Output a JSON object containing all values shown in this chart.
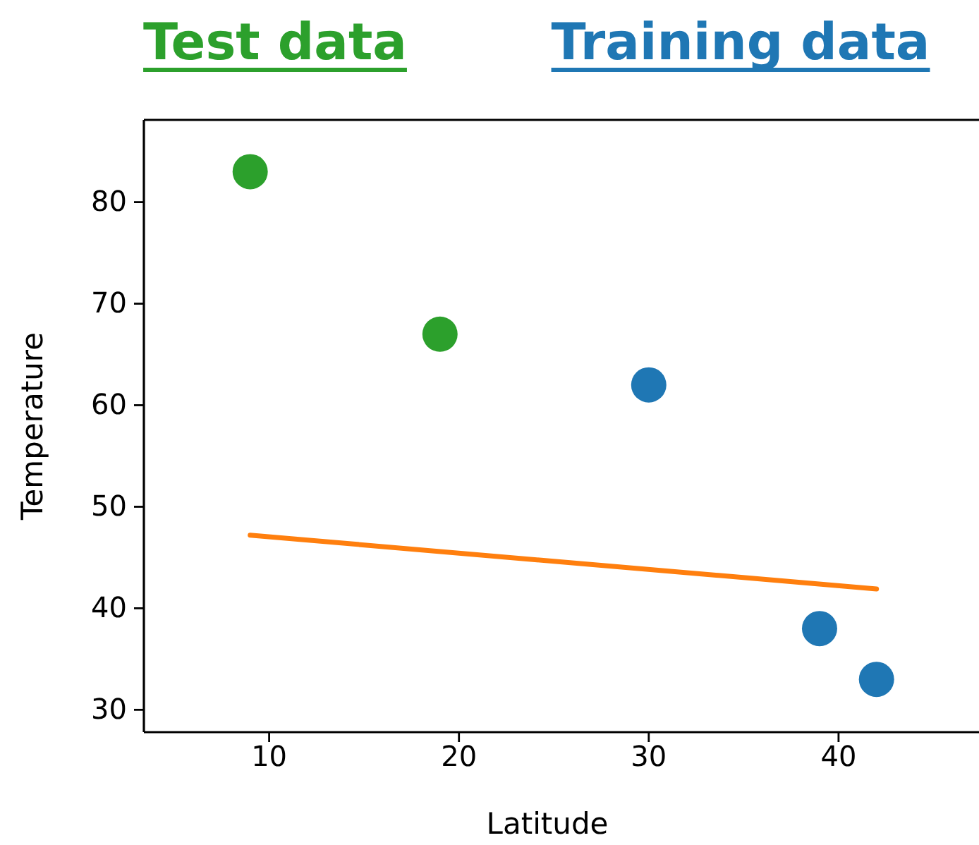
{
  "chart_data": {
    "type": "scatter",
    "xlabel": "Latitude",
    "ylabel": "Temperature",
    "xlim": [
      3.4,
      47.4
    ],
    "ylim": [
      27.8,
      88.1
    ],
    "xticks": [
      10,
      20,
      30,
      40
    ],
    "yticks": [
      30,
      40,
      50,
      60,
      70,
      80
    ],
    "grid": false,
    "legend": "top",
    "series": [
      {
        "name": "Test data",
        "color": "#2ca02c",
        "marker": "circle",
        "x": [
          9,
          19
        ],
        "values": [
          83,
          67
        ]
      },
      {
        "name": "Training data",
        "color": "#1f77b4",
        "marker": "circle",
        "x": [
          30,
          39,
          42
        ],
        "values": [
          62,
          38,
          33
        ]
      },
      {
        "type": "line",
        "color": "#ff7f0e",
        "x": [
          9,
          42
        ],
        "values": [
          47.2,
          41.9
        ],
        "marker": "none"
      }
    ]
  }
}
